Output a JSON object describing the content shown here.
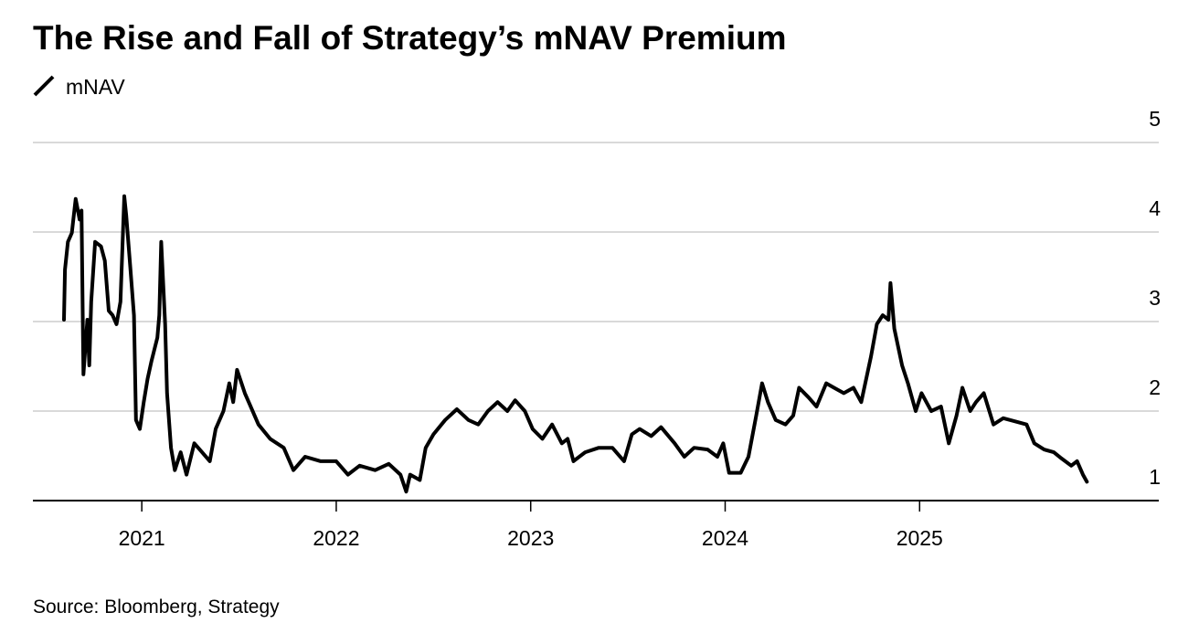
{
  "chart_data": {
    "type": "line",
    "title": "The Rise and Fall of Strategy’s mNAV Premium",
    "source": "Source: Bloomberg, Strategy",
    "x": [
      2020.6,
      2020.605,
      2020.62,
      2020.64,
      2020.66,
      2020.68,
      2020.69,
      2020.7,
      2020.72,
      2020.73,
      2020.74,
      2020.76,
      2020.79,
      2020.81,
      2020.83,
      2020.85,
      2020.87,
      2020.89,
      2020.91,
      2020.92,
      2020.94,
      2020.96,
      2020.97,
      2020.99,
      2021.01,
      2021.03,
      2021.05,
      2021.08,
      2021.09,
      2021.1,
      2021.12,
      2021.13,
      2021.15,
      2021.17,
      2021.2,
      2021.23,
      2021.27,
      2021.31,
      2021.35,
      2021.38,
      2021.42,
      2021.45,
      2021.47,
      2021.49,
      2021.53,
      2021.56,
      2021.6,
      2021.66,
      2021.73,
      2021.78,
      2021.84,
      2021.92,
      2022.0,
      2022.06,
      2022.12,
      2022.2,
      2022.27,
      2022.33,
      2022.36,
      2022.38,
      2022.43,
      2022.46,
      2022.5,
      2022.56,
      2022.62,
      2022.68,
      2022.73,
      2022.78,
      2022.83,
      2022.88,
      2022.92,
      2022.97,
      2023.01,
      2023.06,
      2023.11,
      2023.16,
      2023.19,
      2023.22,
      2023.28,
      2023.35,
      2023.42,
      2023.48,
      2023.52,
      2023.56,
      2023.62,
      2023.67,
      2023.74,
      2023.79,
      2023.84,
      2023.91,
      2023.96,
      2023.99,
      2024.02,
      2024.08,
      2024.12,
      2024.16,
      2024.19,
      2024.22,
      2024.26,
      2024.31,
      2024.35,
      2024.38,
      2024.43,
      2024.47,
      2024.52,
      2024.56,
      2024.61,
      2024.66,
      2024.7,
      2024.75,
      2024.78,
      2024.81,
      2024.84,
      2024.85,
      2024.87,
      2024.91,
      2024.94,
      2024.98,
      2025.01,
      2025.06,
      2025.11,
      2025.15,
      2025.19,
      2025.22,
      2025.26,
      2025.29,
      2025.33,
      2025.38,
      2025.43,
      2025.5,
      2025.55,
      2025.59,
      2025.64,
      2025.69,
      2025.73,
      2025.78,
      2025.81,
      2025.84,
      2025.86
    ],
    "series": [
      {
        "name": "mNAV",
        "color": "#000000",
        "values": [
          3.02,
          3.58,
          3.89,
          3.99,
          4.37,
          4.14,
          4.24,
          2.41,
          3.02,
          2.51,
          3.22,
          3.89,
          3.84,
          3.68,
          3.12,
          3.07,
          2.97,
          3.22,
          4.4,
          4.19,
          3.63,
          3.07,
          1.9,
          1.8,
          2.1,
          2.36,
          2.56,
          2.82,
          3.07,
          3.89,
          2.97,
          2.2,
          1.59,
          1.34,
          1.54,
          1.29,
          1.64,
          1.54,
          1.44,
          1.8,
          2.0,
          2.31,
          2.1,
          2.46,
          2.2,
          2.05,
          1.85,
          1.69,
          1.59,
          1.34,
          1.49,
          1.44,
          1.44,
          1.29,
          1.39,
          1.34,
          1.41,
          1.29,
          1.1,
          1.29,
          1.23,
          1.59,
          1.74,
          1.9,
          2.02,
          1.9,
          1.85,
          2.0,
          2.1,
          2.0,
          2.12,
          2.0,
          1.8,
          1.69,
          1.85,
          1.64,
          1.69,
          1.44,
          1.54,
          1.59,
          1.59,
          1.44,
          1.74,
          1.8,
          1.72,
          1.82,
          1.64,
          1.49,
          1.59,
          1.57,
          1.49,
          1.64,
          1.31,
          1.31,
          1.49,
          1.95,
          2.31,
          2.1,
          1.9,
          1.85,
          1.95,
          2.26,
          2.15,
          2.05,
          2.31,
          2.26,
          2.2,
          2.26,
          2.1,
          2.61,
          2.97,
          3.07,
          3.02,
          3.43,
          2.92,
          2.51,
          2.31,
          2.0,
          2.2,
          2.0,
          2.05,
          1.64,
          1.95,
          2.26,
          2.0,
          2.1,
          2.2,
          1.85,
          1.92,
          1.88,
          1.85,
          1.64,
          1.57,
          1.54,
          1.47,
          1.39,
          1.44,
          1.29,
          1.21
        ]
      }
    ],
    "xlim": [
      2020.44,
      2026.23
    ],
    "xticks": [
      2021,
      2022,
      2023,
      2024,
      2025
    ],
    "ylim": [
      1,
      5
    ],
    "yticks": [
      1,
      2,
      3,
      4,
      5
    ],
    "grid": true
  }
}
